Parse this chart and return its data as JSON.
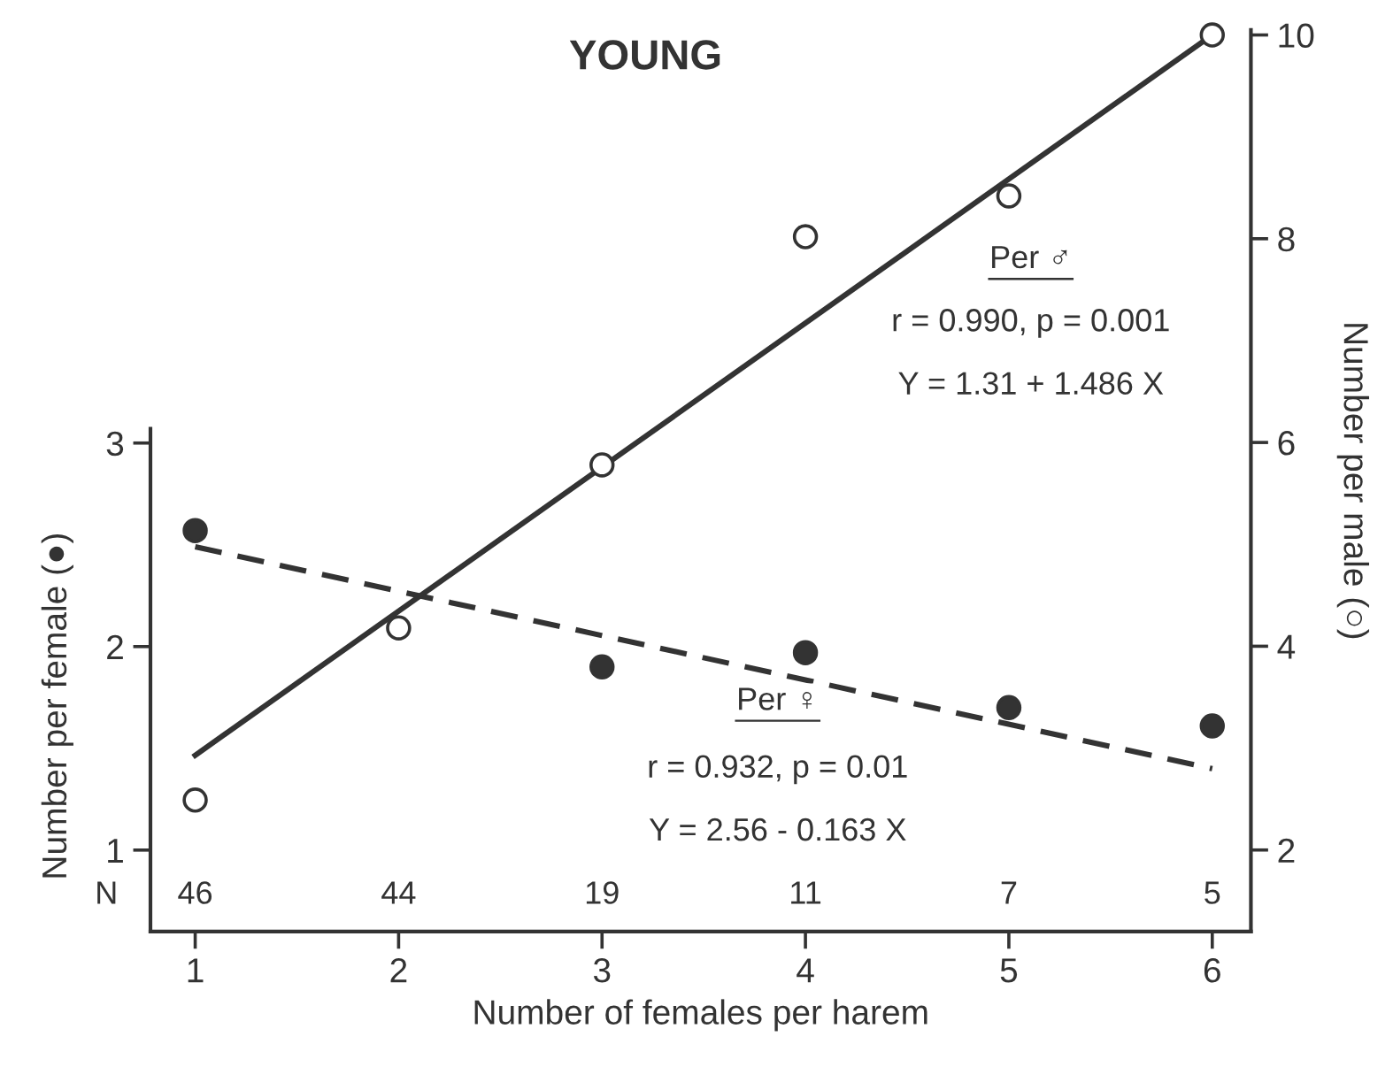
{
  "chart_data": {
    "type": "scatter",
    "title": "YOUNG",
    "xlabel": "Number of females per harem",
    "ylabel": "Number per female (●)",
    "y2label": "Number per male (○)",
    "xlim": [
      0.78,
      6.19
    ],
    "xticks": [
      1,
      2,
      3,
      4,
      5,
      6
    ],
    "ylim": [
      0.6,
      5.03
    ],
    "yticks": [
      1,
      2,
      3
    ],
    "y2lim": [
      1.2,
      10.05
    ],
    "y2ticks": [
      2,
      4,
      6,
      8,
      10
    ],
    "grid": false,
    "series": [
      {
        "x": [
          1,
          2,
          3,
          4,
          5,
          6
        ],
        "values": [
          2.57,
          null,
          1.9,
          1.97,
          1.7,
          1.61
        ],
        "color": "#333333",
        "marker": "circle"
      },
      {
        "x": [
          1,
          2,
          3,
          4,
          5,
          6
        ],
        "values": [
          2.49,
          4.18,
          5.78,
          8.02,
          8.42,
          10
        ],
        "color": "#ffffff",
        "marker": "circle",
        "axis": "y2"
      },
      {
        "type": "line",
        "x": [
          1,
          6
        ],
        "values": [
          2.49,
          1.4
        ],
        "color": "#333333",
        "marker": "none",
        "line_style": "dashed"
      },
      {
        "type": "line",
        "x": [
          1,
          6
        ],
        "values": [
          2.93,
          10
        ],
        "color": "#333333",
        "marker": "none",
        "line_style": "solid",
        "axis": "y2"
      }
    ],
    "annotations": [
      "Per ♂",
      "r = 0.990, p = 0.001",
      "Y = 1.31 + 1.486 X",
      "Per ♀",
      "r = 0.932, p = 0.01",
      "Y = 2.56 - 0.163 X",
      "N",
      "46",
      "44",
      "19",
      "11",
      "7",
      "5"
    ]
  }
}
